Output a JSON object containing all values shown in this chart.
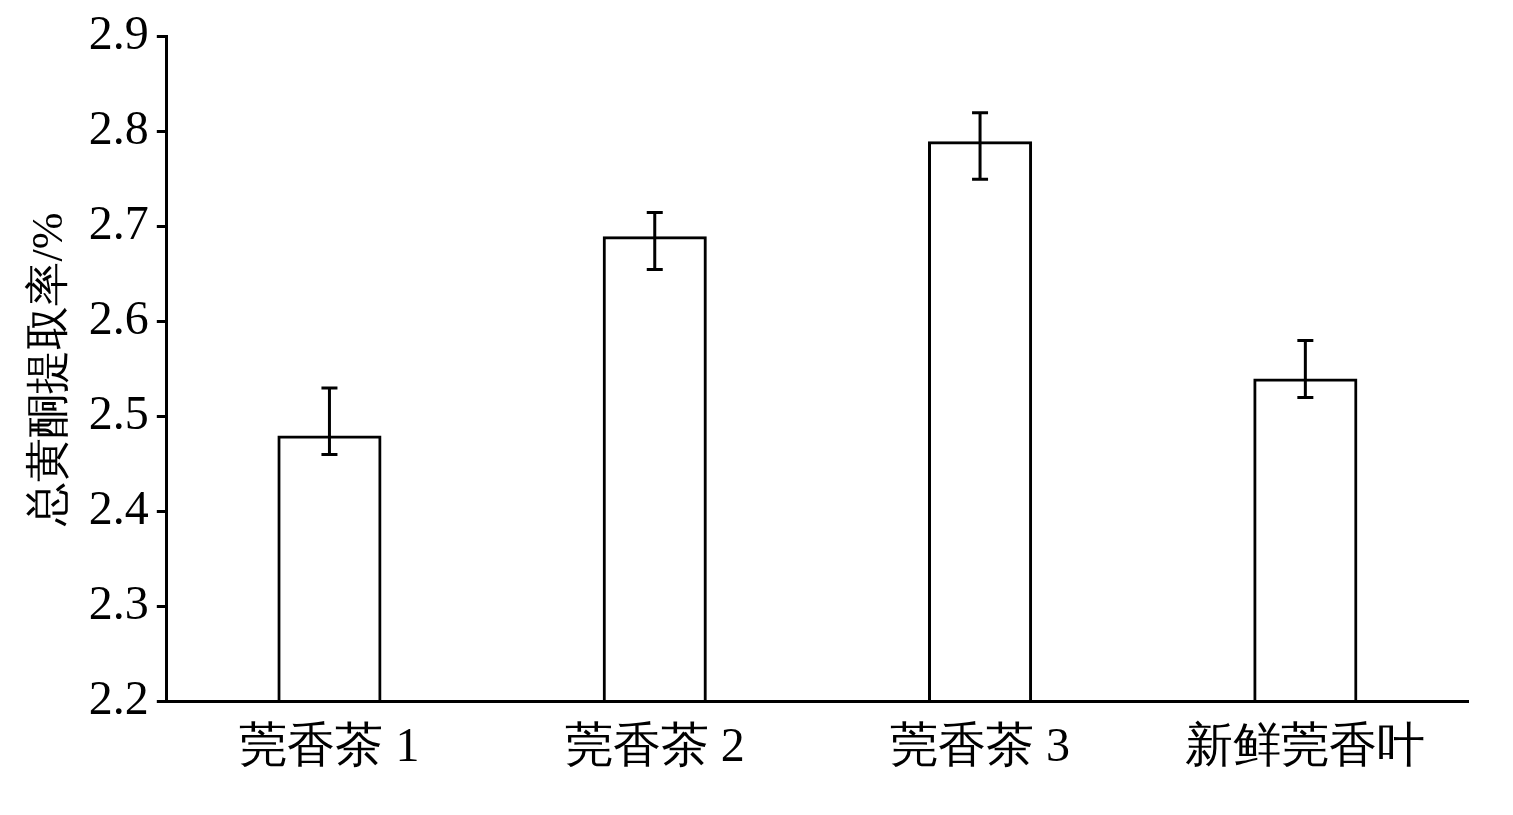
{
  "chart_data": {
    "type": "bar",
    "ylabel": "总黄酮提取率/%",
    "categories": [
      "莞香茶 1",
      "莞香茶 2",
      "莞香茶 3",
      "新鲜莞香叶"
    ],
    "values": [
      2.48,
      2.69,
      2.79,
      2.54
    ],
    "errors": [
      [
        2.46,
        2.53
      ],
      [
        2.655,
        2.715
      ],
      [
        2.75,
        2.82
      ],
      [
        2.52,
        2.58
      ]
    ],
    "color": "#000000",
    "ylim": [
      2.2,
      2.9
    ],
    "yticks": [
      2.2,
      2.3,
      2.4,
      2.5,
      2.6,
      2.7,
      2.8,
      2.9
    ],
    "grid": false,
    "legend": false
  }
}
